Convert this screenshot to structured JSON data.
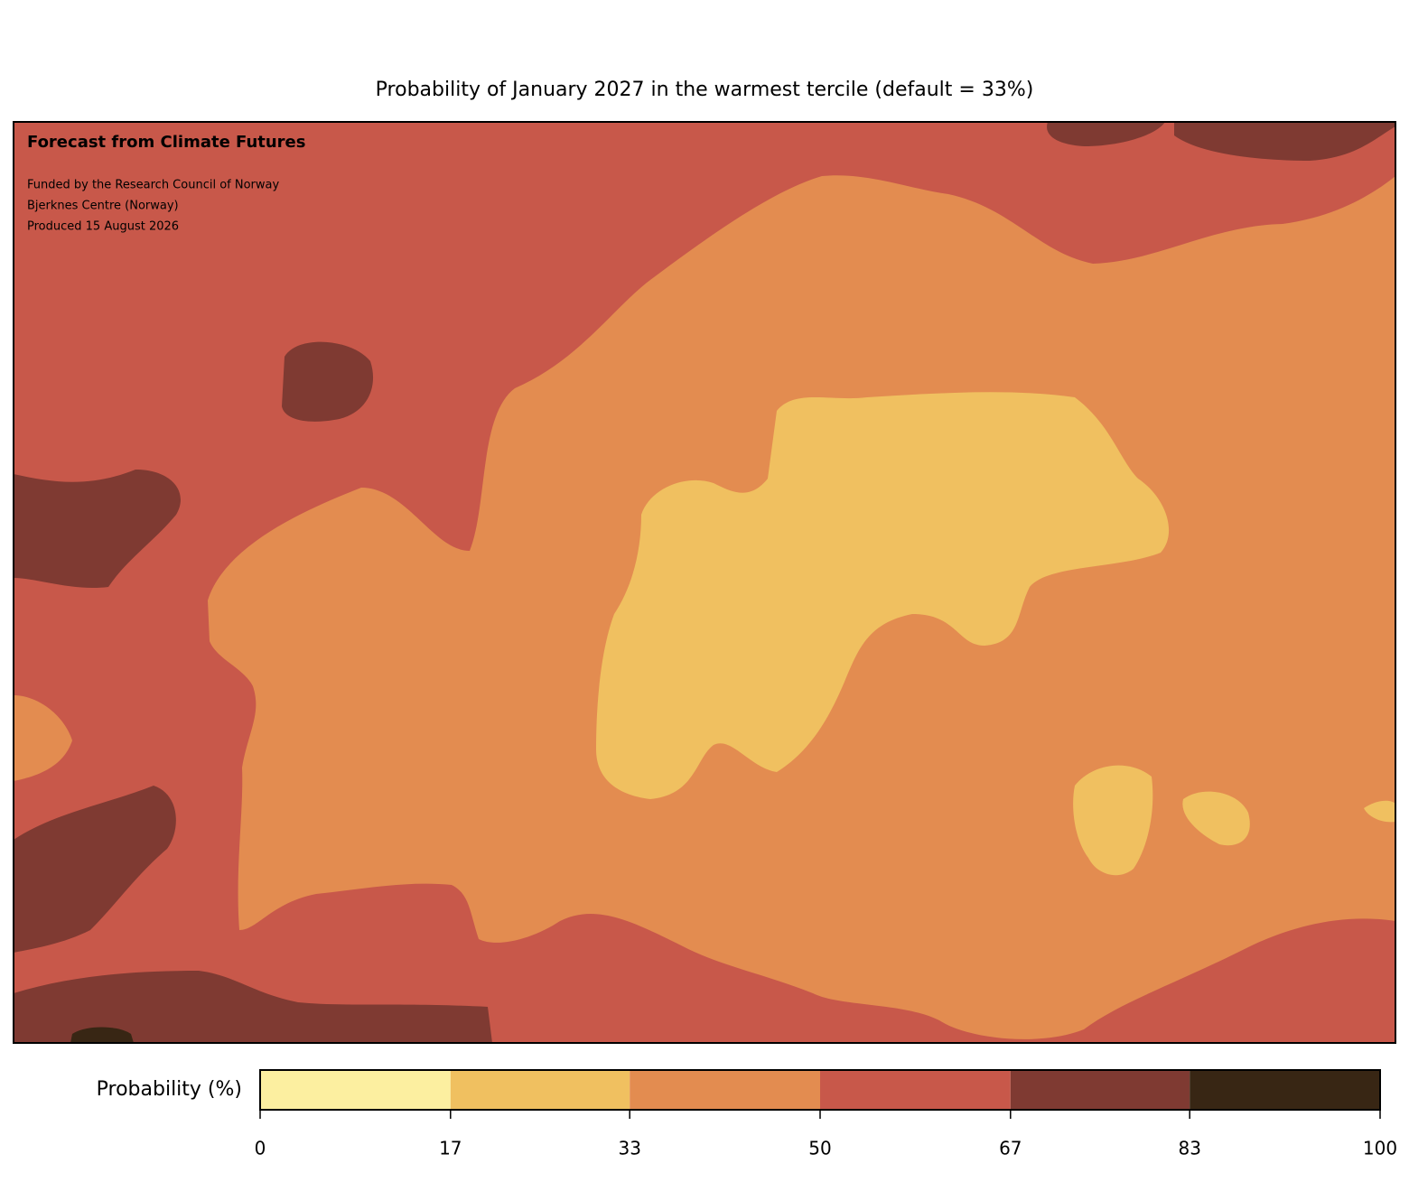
{
  "title": "Probability of January 2027 in the warmest tercile (default = 33%)",
  "annotations": {
    "heading": "Forecast from Climate Futures",
    "lines": [
      "Funded by the Research Council of Norway",
      "Bjerknes Centre (Norway)",
      "Produced 15 August 2026"
    ]
  },
  "colorbar": {
    "label": "Probability (%)",
    "lim": [
      0,
      100
    ],
    "ticks": [
      0,
      17,
      33,
      50,
      67,
      83,
      100
    ],
    "colors": [
      "#fcefa0",
      "#f0c060",
      "#e38c50",
      "#c8584a",
      "#7f3a32",
      "#382614"
    ]
  }
}
